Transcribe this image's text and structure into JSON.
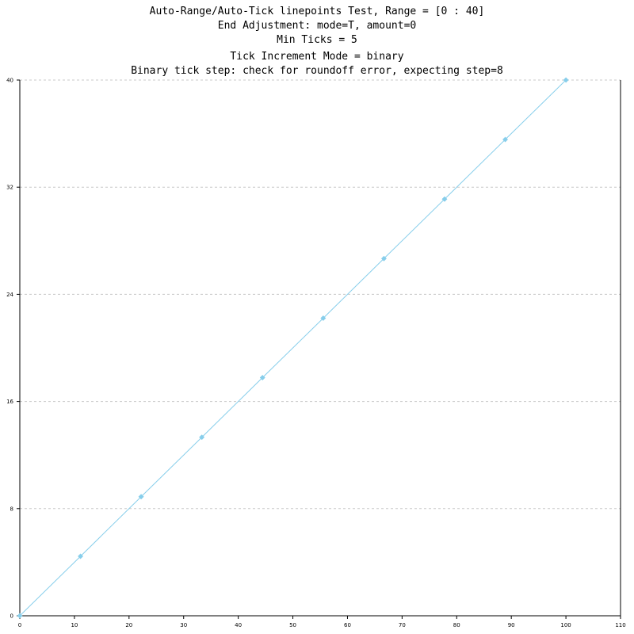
{
  "title_lines": [
    "Auto-Range/Auto-Tick linepoints Test, Range = [0 : 40]",
    "End Adjustment: mode=T, amount=0",
    "Min Ticks = 5",
    "Tick Increment Mode = binary",
    "Binary tick step: check for roundoff error, expecting step=8"
  ],
  "chart_data": {
    "type": "line",
    "title": "Auto-Range/Auto-Tick linepoints Test, Range = [0 : 40]",
    "subtitle_lines": [
      "End Adjustment: mode=T, amount=0",
      "Min Ticks = 5",
      "Tick Increment Mode = binary",
      "Binary tick step: check for roundoff error, expecting step=8"
    ],
    "xlabel": "",
    "ylabel": "",
    "xlim": [
      0,
      110
    ],
    "ylim": [
      0,
      40
    ],
    "x_ticks": [
      0,
      10,
      20,
      30,
      40,
      50,
      60,
      70,
      80,
      90,
      100,
      110
    ],
    "y_ticks": [
      0,
      8,
      16,
      24,
      32,
      40
    ],
    "grid": "horizontal dashed",
    "legend": "none",
    "series": [
      {
        "color": "#87ceeb",
        "marker": "diamond",
        "points": [
          {
            "x": 0,
            "y": 0
          },
          {
            "x": 11.11,
            "y": 4.44
          },
          {
            "x": 22.22,
            "y": 8.89
          },
          {
            "x": 33.33,
            "y": 13.33
          },
          {
            "x": 44.44,
            "y": 17.78
          },
          {
            "x": 55.56,
            "y": 22.22
          },
          {
            "x": 66.67,
            "y": 26.67
          },
          {
            "x": 77.78,
            "y": 31.11
          },
          {
            "x": 88.89,
            "y": 35.56
          },
          {
            "x": 100,
            "y": 40
          }
        ]
      }
    ]
  }
}
